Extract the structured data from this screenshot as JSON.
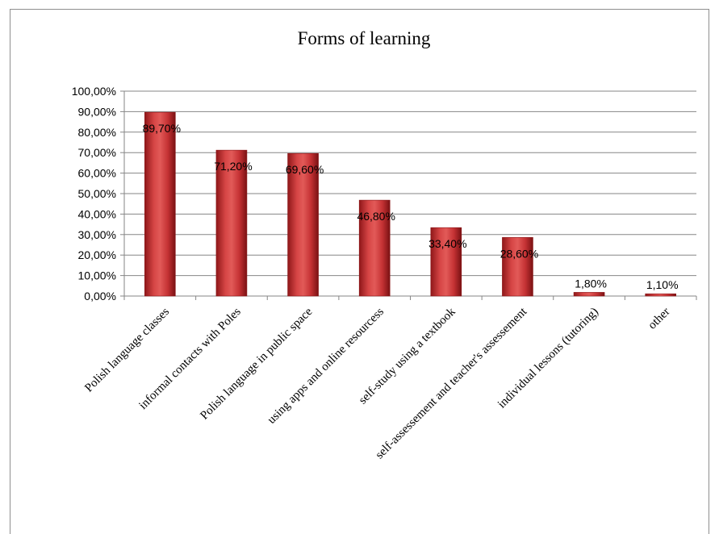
{
  "chart_data": {
    "type": "bar",
    "title": "Forms of learning",
    "categories": [
      "Polish language classes",
      "informal contacts with Poles",
      "Polish language in public space",
      "using apps and online resourcess",
      "self-study using a textbook",
      "self-assessement and teacher's assessement",
      "individual lessons (tutoring)",
      "other"
    ],
    "values": [
      89.7,
      71.2,
      69.6,
      46.8,
      33.4,
      28.6,
      1.8,
      1.1
    ],
    "data_labels": [
      "89,70%",
      "71,20%",
      "69,60%",
      "46,80%",
      "33,40%",
      "28,60%",
      "1,80%",
      "1,10%"
    ],
    "y_ticks": [
      "0,00%",
      "10,00%",
      "20,00%",
      "30,00%",
      "40,00%",
      "50,00%",
      "60,00%",
      "70,00%",
      "80,00%",
      "90,00%",
      "100,00%"
    ],
    "ylim": [
      0,
      100
    ],
    "grid": true,
    "legend": "none",
    "bar_color": "#c0272d",
    "xlabel": "",
    "ylabel": ""
  }
}
